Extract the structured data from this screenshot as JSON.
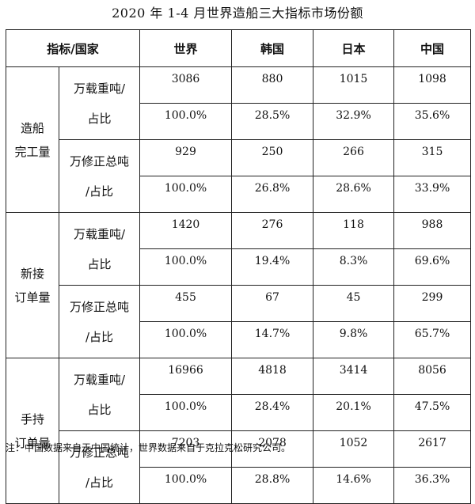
{
  "title": "2020 年 1-4 月世界造船三大指标市场份额",
  "header": [
    "指标/国家",
    "世界",
    "韩国",
    "日本",
    "中国"
  ],
  "sections": [
    {
      "category": [
        "造船",
        "完工量"
      ],
      "units": [
        {
          "label": [
            "万载重吨/",
            "占比"
          ],
          "rows": [
            [
              "3086",
              "880",
              "1015",
              "1098"
            ],
            [
              "100.0%",
              "28.5%",
              "32.9%",
              "35.6%"
            ]
          ]
        },
        {
          "label": [
            "万修正总吨",
            "/占比"
          ],
          "rows": [
            [
              "929",
              "250",
              "266",
              "315"
            ],
            [
              "100.0%",
              "26.8%",
              "28.6%",
              "33.9%"
            ]
          ]
        }
      ]
    },
    {
      "category": [
        "新接",
        "订单量"
      ],
      "units": [
        {
          "label": [
            "万载重吨/",
            "占比"
          ],
          "rows": [
            [
              "1420",
              "276",
              "118",
              "988"
            ],
            [
              "100.0%",
              "19.4%",
              "8.3%",
              "69.6%"
            ]
          ]
        },
        {
          "label": [
            "万修正总吨",
            "/占比"
          ],
          "rows": [
            [
              "455",
              "67",
              "45",
              "299"
            ],
            [
              "100.0%",
              "14.7%",
              "9.8%",
              "65.7%"
            ]
          ]
        }
      ]
    },
    {
      "category": [
        "手持",
        "订单量"
      ],
      "units": [
        {
          "label": [
            "万载重吨/",
            "占比"
          ],
          "rows": [
            [
              "16966",
              "4818",
              "3414",
              "8056"
            ],
            [
              "100.0%",
              "28.4%",
              "20.1%",
              "47.5%"
            ]
          ]
        },
        {
          "label": [
            "万修正总吨",
            "/占比"
          ],
          "rows": [
            [
              "7203",
              "2078",
              "1052",
              "2617"
            ],
            [
              "100.0%",
              "28.8%",
              "14.6%",
              "36.3%"
            ]
          ]
        }
      ]
    }
  ],
  "note": "注：中国数据来自于中国统计，世界数据来自于克拉克松研究公司。"
}
